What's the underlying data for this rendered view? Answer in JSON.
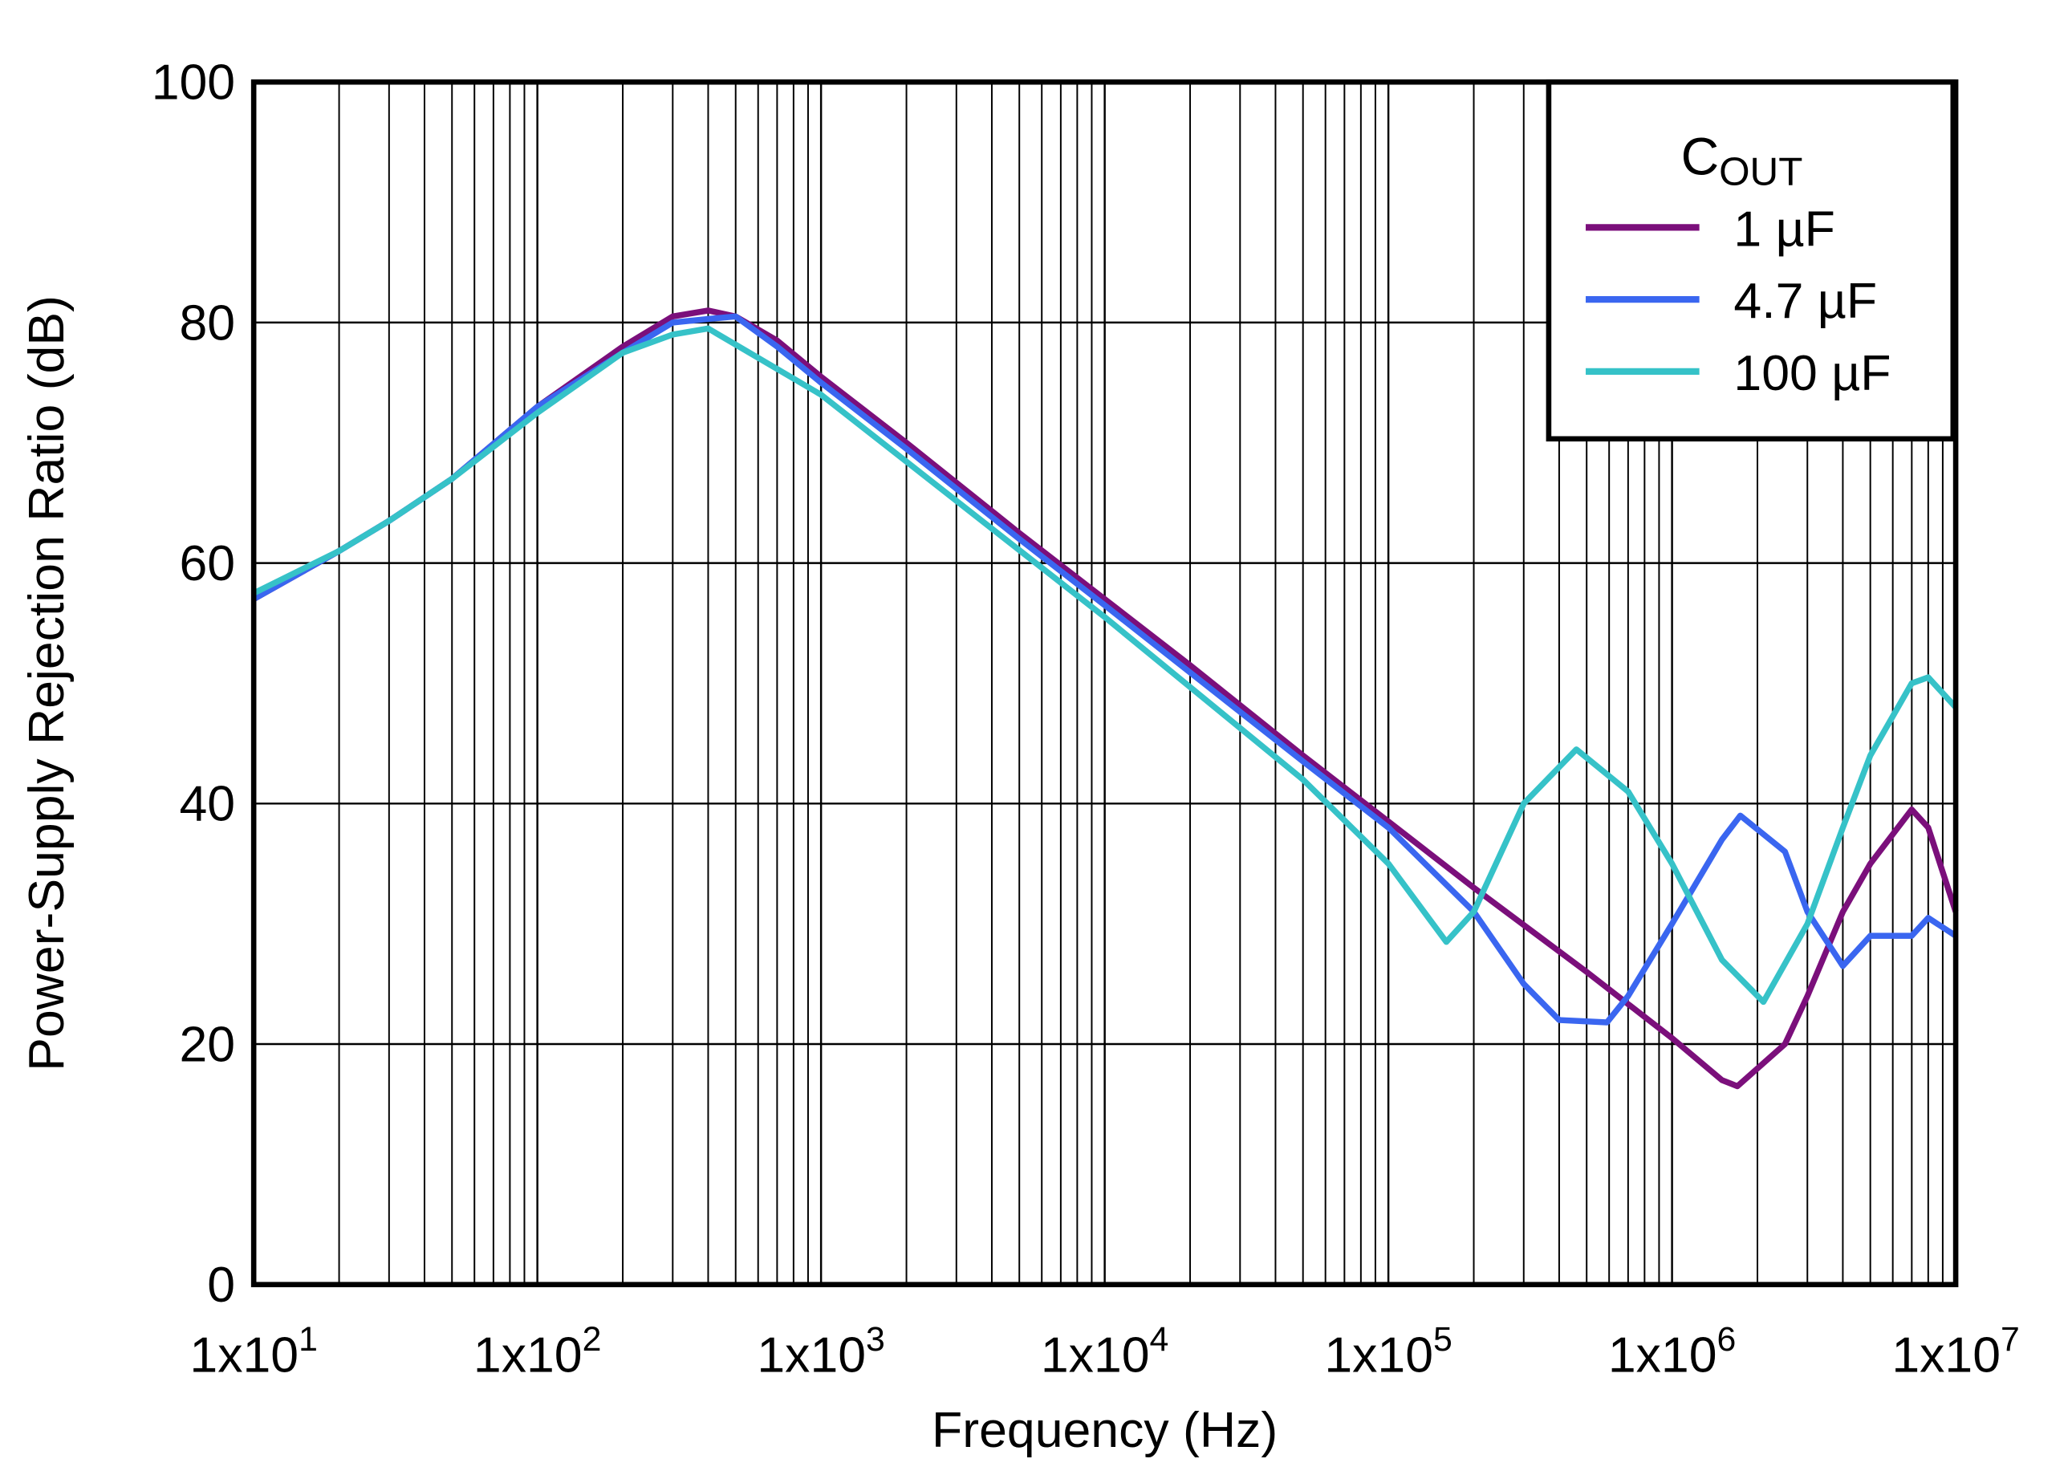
{
  "chart_data": {
    "type": "line",
    "xlabel": "Frequency (Hz)",
    "ylabel": "Power-Supply Rejection Ratio (dB)",
    "xscale": "log",
    "xlim": [
      10,
      10000000
    ],
    "xticks": [
      {
        "value": 10,
        "label": "1x10",
        "sup": "1"
      },
      {
        "value": 100,
        "label": "1x10",
        "sup": "2"
      },
      {
        "value": 1000,
        "label": "1x10",
        "sup": "3"
      },
      {
        "value": 10000,
        "label": "1x10",
        "sup": "4"
      },
      {
        "value": 100000,
        "label": "1x10",
        "sup": "5"
      },
      {
        "value": 1000000,
        "label": "1x10",
        "sup": "6"
      },
      {
        "value": 10000000,
        "label": "1x10",
        "sup": "7"
      }
    ],
    "ylim": [
      0,
      100
    ],
    "yticks": [
      0,
      20,
      40,
      60,
      80,
      100
    ],
    "grid": true,
    "minor_grid": true,
    "legend_title": "C",
    "legend_title_sub": "OUT",
    "legend_position": "upper right",
    "series": [
      {
        "name": "1 µF",
        "color": "#7b0f7b",
        "x": [
          10,
          20,
          30,
          50,
          100,
          200,
          300,
          400,
          500,
          700,
          1000,
          2000,
          5000,
          10000,
          20000,
          50000,
          100000,
          200000,
          500000,
          1000000,
          1500000,
          1700000,
          2500000,
          3000000,
          4000000,
          5000000,
          7000000,
          8000000,
          10000000
        ],
        "values": [
          57,
          61,
          63.5,
          67,
          73,
          78,
          80.5,
          81,
          80.5,
          78.5,
          75.5,
          70,
          62.5,
          57,
          51.5,
          44,
          38.5,
          33,
          26,
          20.5,
          17,
          16.5,
          20,
          24,
          31,
          35,
          39.5,
          38,
          31
        ]
      },
      {
        "name": "4.7 µF",
        "color": "#3a66f0",
        "x": [
          10,
          20,
          30,
          50,
          100,
          200,
          300,
          400,
          500,
          700,
          1000,
          2000,
          5000,
          10000,
          50000,
          100000,
          200000,
          300000,
          400000,
          590000,
          700000,
          1000000,
          1500000,
          1740000,
          2500000,
          3000000,
          4000000,
          5000000,
          7000000,
          8000000,
          10000000
        ],
        "values": [
          57,
          61,
          63.5,
          67,
          73,
          77.5,
          80,
          80.3,
          80.5,
          78,
          75,
          69.5,
          62,
          56.5,
          43.5,
          38,
          31,
          25,
          22,
          21.8,
          24,
          30,
          37,
          39,
          36,
          31,
          26.5,
          29,
          29,
          30.5,
          29
        ]
      },
      {
        "name": "100 µF",
        "color": "#36c2c8",
        "x": [
          10,
          20,
          30,
          50,
          100,
          200,
          300,
          400,
          1000,
          10000,
          50000,
          100000,
          160000,
          200000,
          300000,
          460000,
          700000,
          1000000,
          1500000,
          2100000,
          3000000,
          4000000,
          5000000,
          7000000,
          8000000,
          10000000
        ],
        "values": [
          57.5,
          61,
          63.5,
          67,
          72.5,
          77.5,
          79,
          79.5,
          74,
          55.5,
          42,
          35,
          28.5,
          31,
          40,
          44.5,
          41,
          35,
          27,
          23.5,
          30,
          38,
          44,
          50,
          50.5,
          48
        ]
      }
    ]
  }
}
